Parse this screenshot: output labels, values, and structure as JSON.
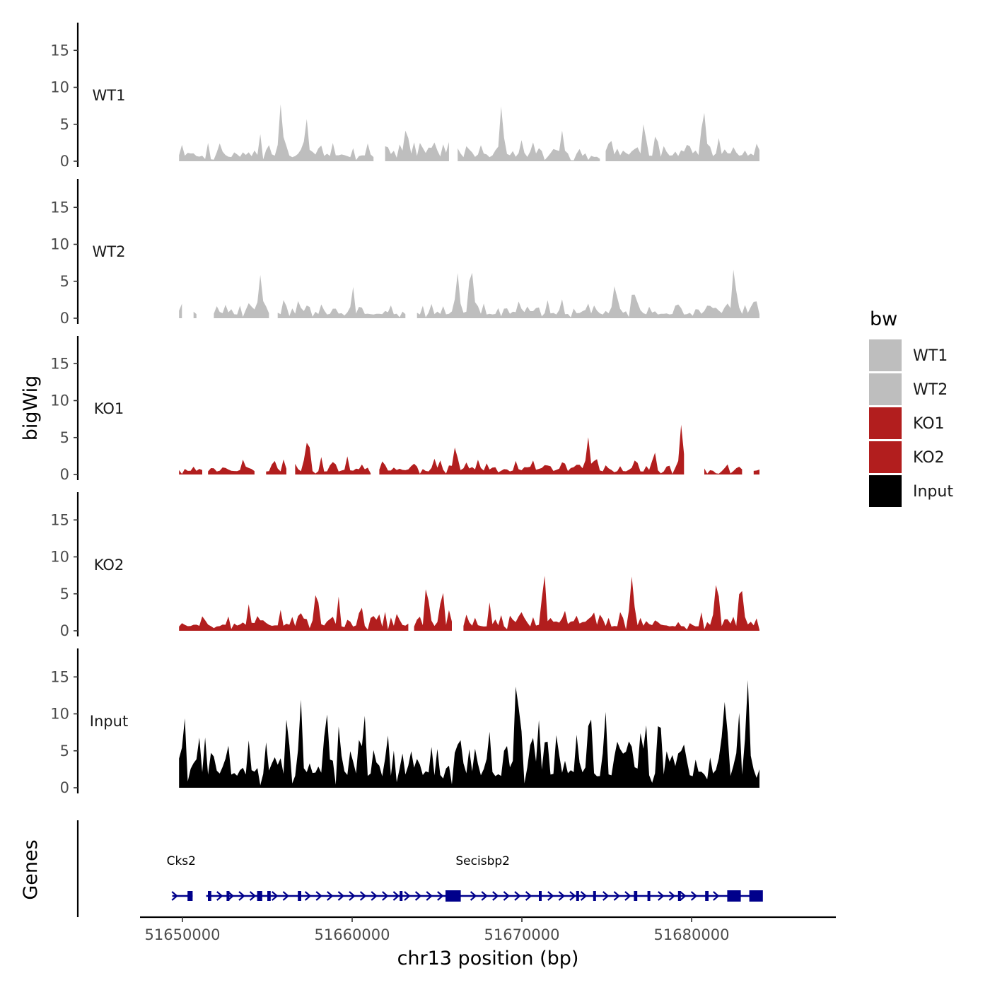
{
  "chart_data": {
    "type": "area",
    "ylabel_tracks": "bigWig",
    "ylabel_genes": "Genes",
    "xlabel": "chr13 position (bp)",
    "xlim": [
      51647500,
      51688500
    ],
    "x_ticks": [
      51650000,
      51660000,
      51670000,
      51680000
    ],
    "x_tick_labels": [
      "51650000",
      "51660000",
      "51670000",
      "51680000"
    ],
    "ylim": [
      0,
      19
    ],
    "y_ticks": [
      0,
      5,
      10,
      15
    ],
    "y_tick_labels": [
      "0",
      "5",
      "10",
      "15"
    ],
    "signal_start": 51649800,
    "signal_end": 51684000,
    "signal_bin_bp": 171,
    "tracks": [
      {
        "name": "WT1",
        "color": "#bebebe",
        "peaks": [
          [
            51655800,
            7.9
          ],
          [
            51657300,
            6.1
          ],
          [
            51668800,
            7.7
          ],
          [
            51677200,
            5.9
          ],
          [
            51680700,
            7.7
          ],
          [
            51663200,
            5.2
          ]
        ],
        "gaps": [
          [
            51661300,
            51661800
          ],
          [
            51665800,
            51666100
          ],
          [
            51674600,
            51674900
          ]
        ],
        "base": 2.2,
        "seed": 11
      },
      {
        "name": "WT2",
        "color": "#bebebe",
        "peaks": [
          [
            51654600,
            6.0
          ],
          [
            51666200,
            6.4
          ],
          [
            51667000,
            7.9
          ],
          [
            51675500,
            5.2
          ],
          [
            51682500,
            7.5
          ]
        ],
        "gaps": [
          [
            51650100,
            51650600
          ],
          [
            51650900,
            51651700
          ],
          [
            51655200,
            51655600
          ],
          [
            51663300,
            51663800
          ]
        ],
        "base": 2.0,
        "seed": 23
      },
      {
        "name": "KO1",
        "color": "#b21e1e",
        "peaks": [
          [
            51657400,
            5.9
          ],
          [
            51673900,
            5.0
          ],
          [
            51679400,
            7.0
          ],
          [
            51666100,
            4.2
          ],
          [
            51677800,
            3.4
          ]
        ],
        "gaps": [
          [
            51651200,
            51651400
          ],
          [
            51654400,
            51654900
          ],
          [
            51656200,
            51656500
          ],
          [
            51661100,
            51661500
          ],
          [
            51679700,
            51680600
          ],
          [
            51683100,
            51683600
          ]
        ],
        "base": 1.6,
        "seed": 37
      },
      {
        "name": "KO2",
        "color": "#b21e1e",
        "peaks": [
          [
            51657900,
            6.1
          ],
          [
            51664400,
            6.8
          ],
          [
            51665300,
            6.3
          ],
          [
            51671300,
            8.4
          ],
          [
            51676500,
            7.4
          ],
          [
            51681500,
            7.5
          ],
          [
            51682900,
            7.6
          ]
        ],
        "gaps": [
          [
            51663400,
            51663600
          ],
          [
            51665900,
            51666400
          ]
        ],
        "base": 2.2,
        "seed": 53
      },
      {
        "name": "Input",
        "color": "#000000",
        "peaks": [
          [
            51669700,
            17.8
          ],
          [
            51683300,
            15.1
          ],
          [
            51682000,
            13.4
          ],
          [
            51660700,
            10.8
          ],
          [
            51674000,
            12.7
          ],
          [
            51678100,
            10.8
          ]
        ],
        "gaps": [],
        "base": 6.2,
        "seed": 71
      }
    ],
    "legend": {
      "title": "bw",
      "entries": [
        {
          "label": "WT1",
          "color": "#bebebe"
        },
        {
          "label": "WT2",
          "color": "#bebebe"
        },
        {
          "label": "KO1",
          "color": "#b21e1e"
        },
        {
          "label": "KO2",
          "color": "#b21e1e"
        },
        {
          "label": "Input",
          "color": "#000000"
        }
      ]
    },
    "genes": {
      "color": "#00008b",
      "items": [
        {
          "name": "Cks2",
          "start": 51649400,
          "end": 51650600,
          "exons": [
            [
              51650300,
              51650600
            ]
          ]
        },
        {
          "name": "Secisbp2",
          "start": 51651400,
          "end": 51684100,
          "exons": [
            [
              51651500,
              51651700
            ],
            [
              51652600,
              51652700
            ],
            [
              51654400,
              51654700
            ],
            [
              51655000,
              51655200
            ],
            [
              51656800,
              51657000
            ],
            [
              51662800,
              51662900
            ],
            [
              51665500,
              51666400
            ],
            [
              51671000,
              51671100
            ],
            [
              51673200,
              51673300
            ],
            [
              51674200,
              51674300
            ],
            [
              51676600,
              51676800
            ],
            [
              51677400,
              51677500
            ],
            [
              51679200,
              51679300
            ],
            [
              51680800,
              51681000
            ],
            [
              51682100,
              51682900
            ],
            [
              51683400,
              51684200
            ]
          ]
        }
      ]
    }
  }
}
